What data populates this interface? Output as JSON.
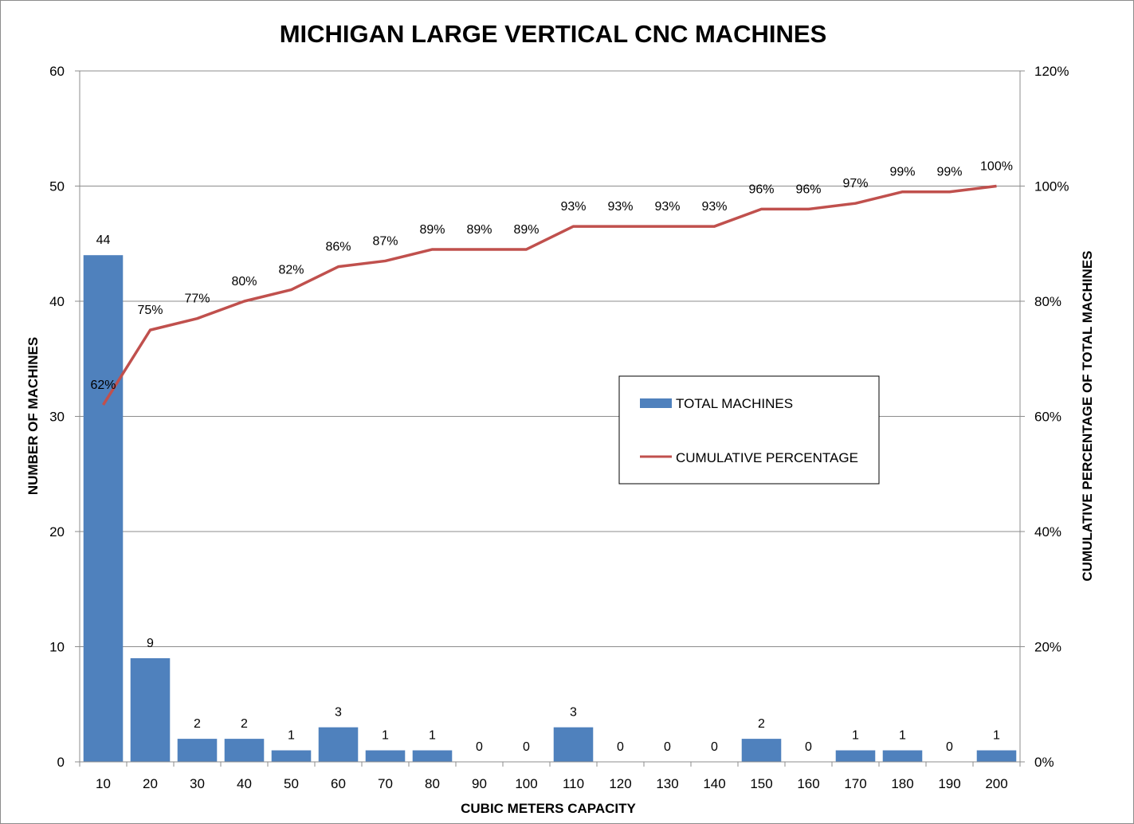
{
  "chart_data": {
    "type": "bar",
    "title": "MICHIGAN LARGE VERTICAL CNC MACHINES",
    "xlabel": "CUBIC METERS CAPACITY",
    "ylabel": "NUMBER OF MACHINES",
    "y2label": "CUMULATIVE PERCENTAGE OF TOTAL MACHINES",
    "categories": [
      "10",
      "20",
      "30",
      "40",
      "50",
      "60",
      "70",
      "80",
      "90",
      "100",
      "110",
      "120",
      "130",
      "140",
      "150",
      "160",
      "170",
      "180",
      "190",
      "200"
    ],
    "ylim": [
      0,
      60
    ],
    "yticks": [
      "0",
      "10",
      "20",
      "30",
      "40",
      "50",
      "60"
    ],
    "y2lim": [
      0,
      120
    ],
    "y2ticks": [
      "0%",
      "20%",
      "40%",
      "60%",
      "80%",
      "100%",
      "120%"
    ],
    "grid": true,
    "legend_position": "right-center",
    "series": [
      {
        "name": "TOTAL MACHINES",
        "type": "bar",
        "color": "#4f81bd",
        "values": [
          44,
          9,
          2,
          2,
          1,
          3,
          1,
          1,
          0,
          0,
          3,
          0,
          0,
          0,
          2,
          0,
          1,
          1,
          0,
          1
        ],
        "labels": [
          "44",
          "9",
          "2",
          "2",
          "1",
          "3",
          "1",
          "1",
          "0",
          "0",
          "3",
          "0",
          "0",
          "0",
          "2",
          "0",
          "1",
          "1",
          "0",
          "1"
        ]
      },
      {
        "name": "CUMULATIVE PERCENTAGE",
        "type": "line",
        "axis": "right",
        "color": "#c0504d",
        "values": [
          62,
          75,
          77,
          80,
          82,
          86,
          87,
          89,
          89,
          89,
          93,
          93,
          93,
          93,
          96,
          96,
          97,
          99,
          99,
          100
        ],
        "labels": [
          "62%",
          "75%",
          "77%",
          "80%",
          "82%",
          "86%",
          "87%",
          "89%",
          "89%",
          "89%",
          "93%",
          "93%",
          "93%",
          "93%",
          "96%",
          "96%",
          "97%",
          "99%",
          "99%",
          "100%"
        ]
      }
    ]
  }
}
